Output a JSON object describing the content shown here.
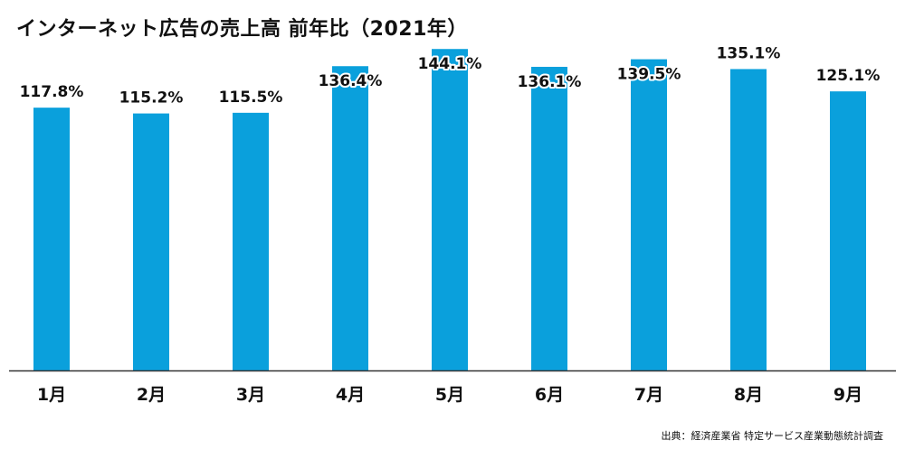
{
  "chart_data": {
    "type": "bar",
    "title": "インターネット広告の売上高 前年比（2021年）",
    "categories": [
      "1月",
      "2月",
      "3月",
      "4月",
      "5月",
      "6月",
      "7月",
      "8月",
      "9月"
    ],
    "values": [
      117.8,
      115.2,
      115.5,
      136.4,
      144.1,
      136.1,
      139.5,
      135.1,
      125.1
    ],
    "data_labels": [
      "117.8%",
      "115.2%",
      "115.5%",
      "136.4%",
      "144.1%",
      "136.1%",
      "139.5%",
      "135.1%",
      "125.1%"
    ],
    "unit": "%",
    "ylim": [
      0,
      145
    ],
    "grid": false,
    "legend": "none",
    "bar_color": "#0aa0dc",
    "axis_color": "#333333"
  },
  "source": "出典：経済産業省 特定サービス産業動態統計調査"
}
